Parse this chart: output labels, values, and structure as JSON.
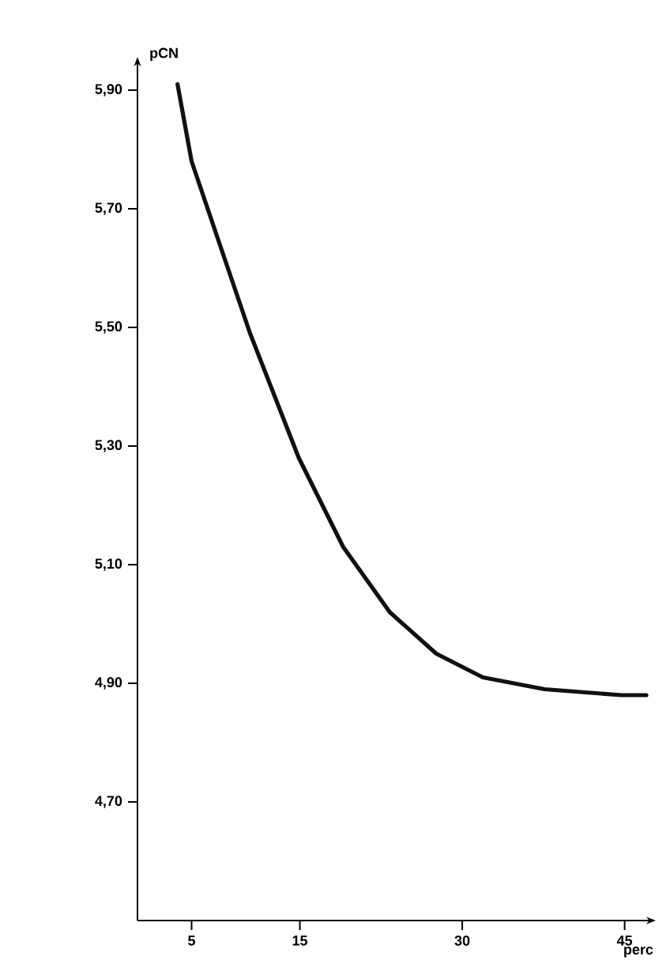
{
  "chart_data": {
    "type": "line",
    "xlabel": "perc",
    "ylabel": "pCN",
    "x": [
      3.7,
      5,
      7.6,
      10.4,
      14.9,
      19,
      23.3,
      27.6,
      31.9,
      37.6,
      44.7,
      47
    ],
    "series": [
      {
        "color": "#111111",
        "values": [
          5.91,
          5.78,
          5.64,
          5.49,
          5.28,
          5.13,
          5.02,
          4.95,
          4.91,
          4.89,
          4.88,
          4.88
        ]
      }
    ],
    "xlim": [
      0,
      47
    ],
    "ylim": [
      4.5,
      5.94
    ],
    "xticks": [
      5,
      15,
      30,
      45
    ],
    "yticks": [
      {
        "value": 4.7,
        "label": "4,70"
      },
      {
        "value": 4.9,
        "label": "4,90"
      },
      {
        "value": 5.1,
        "label": "5,10"
      },
      {
        "value": 5.3,
        "label": "5,30"
      },
      {
        "value": 5.5,
        "label": "5,50"
      },
      {
        "value": 5.7,
        "label": "5,70"
      },
      {
        "value": 5.9,
        "label": "5,90"
      }
    ],
    "grid": false,
    "marker": "none",
    "line_style": "solid"
  }
}
